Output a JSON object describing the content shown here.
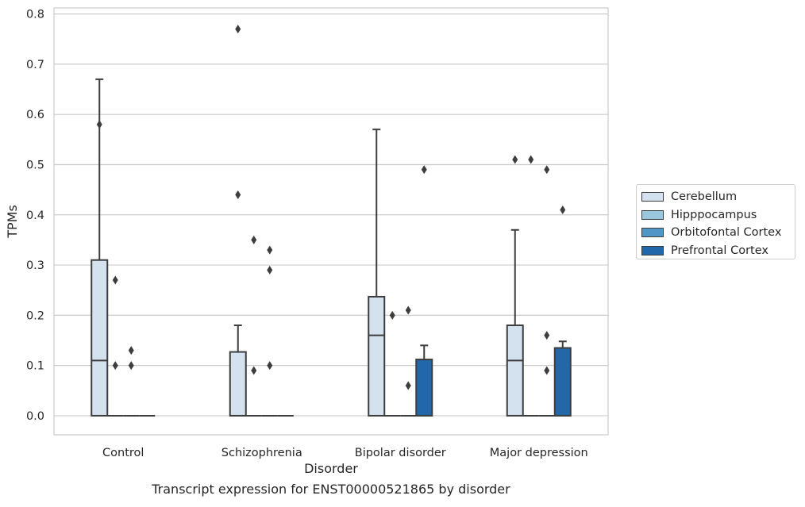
{
  "chart_data": {
    "type": "box",
    "title": "Transcript expression for ENST00000521865 by disorder",
    "xlabel": "Disorder",
    "ylabel": "TPMs",
    "ylim": [
      -0.038,
      0.812
    ],
    "yticks": [
      "0.0",
      "0.1",
      "0.2",
      "0.3",
      "0.4",
      "0.5",
      "0.6",
      "0.7",
      "0.8"
    ],
    "ytick_values": [
      0,
      0.1,
      0.2,
      0.3,
      0.4,
      0.5,
      0.6,
      0.7,
      0.8
    ],
    "categories": [
      "Control",
      "Schizophrenia",
      "Bipolar disorder",
      "Major depression"
    ],
    "grid": "horizontal",
    "legend_position": "right",
    "series": [
      {
        "name": "Cerebellum",
        "color": "#d4e2f0",
        "boxes": [
          {
            "category": "Control",
            "q1": 0,
            "median": 0.11,
            "q3": 0.31,
            "whisker_low": 0,
            "whisker_high": 0.67,
            "outliers": [
              0.58
            ]
          },
          {
            "category": "Schizophrenia",
            "q1": 0,
            "median": 0,
            "q3": 0.127,
            "whisker_low": 0,
            "whisker_high": 0.18,
            "outliers": [
              0.77,
              0.44
            ]
          },
          {
            "category": "Bipolar disorder",
            "q1": 0,
            "median": 0.16,
            "q3": 0.237,
            "whisker_low": 0,
            "whisker_high": 0.57,
            "outliers": []
          },
          {
            "category": "Major depression",
            "q1": 0,
            "median": 0.11,
            "q3": 0.18,
            "whisker_low": 0,
            "whisker_high": 0.37,
            "outliers": [
              0.51
            ]
          }
        ]
      },
      {
        "name": "Hipppocampus",
        "color": "#9ac6de",
        "boxes": [
          {
            "category": "Control",
            "q1": 0,
            "median": 0,
            "q3": 0,
            "whisker_low": 0,
            "whisker_high": 0,
            "outliers": [
              0.27,
              0.1
            ]
          },
          {
            "category": "Schizophrenia",
            "q1": 0,
            "median": 0,
            "q3": 0,
            "whisker_low": 0,
            "whisker_high": 0,
            "outliers": [
              0.35,
              0.09
            ]
          },
          {
            "category": "Bipolar disorder",
            "q1": 0,
            "median": 0,
            "q3": 0,
            "whisker_low": 0,
            "whisker_high": 0,
            "outliers": [
              0.2
            ]
          },
          {
            "category": "Major depression",
            "q1": 0,
            "median": 0,
            "q3": 0,
            "whisker_low": 0,
            "whisker_high": 0,
            "outliers": [
              0.51
            ]
          }
        ]
      },
      {
        "name": "Orbitofontal Cortex",
        "color": "#5097c7",
        "boxes": [
          {
            "category": "Control",
            "q1": 0,
            "median": 0,
            "q3": 0,
            "whisker_low": 0,
            "whisker_high": 0,
            "outliers": [
              0.13,
              0.1
            ]
          },
          {
            "category": "Schizophrenia",
            "q1": 0,
            "median": 0,
            "q3": 0,
            "whisker_low": 0,
            "whisker_high": 0,
            "outliers": [
              0.33,
              0.29,
              0.1
            ]
          },
          {
            "category": "Bipolar disorder",
            "q1": 0,
            "median": 0,
            "q3": 0,
            "whisker_low": 0,
            "whisker_high": 0,
            "outliers": [
              0.21,
              0.06
            ]
          },
          {
            "category": "Major depression",
            "q1": 0,
            "median": 0,
            "q3": 0,
            "whisker_low": 0,
            "whisker_high": 0,
            "outliers": [
              0.49,
              0.16,
              0.09
            ]
          }
        ]
      },
      {
        "name": "Prefrontal Cortex",
        "color": "#2267a9",
        "boxes": [
          {
            "category": "Control",
            "q1": 0,
            "median": 0,
            "q3": 0,
            "whisker_low": 0,
            "whisker_high": 0,
            "outliers": []
          },
          {
            "category": "Schizophrenia",
            "q1": 0,
            "median": 0,
            "q3": 0,
            "whisker_low": 0,
            "whisker_high": 0,
            "outliers": []
          },
          {
            "category": "Bipolar disorder",
            "q1": 0,
            "median": 0,
            "q3": 0.112,
            "whisker_low": 0,
            "whisker_high": 0.14,
            "outliers": [
              0.49
            ]
          },
          {
            "category": "Major depression",
            "q1": 0,
            "median": 0,
            "q3": 0.135,
            "whisker_low": 0,
            "whisker_high": 0.148,
            "outliers": [
              0.41
            ]
          }
        ]
      }
    ]
  }
}
